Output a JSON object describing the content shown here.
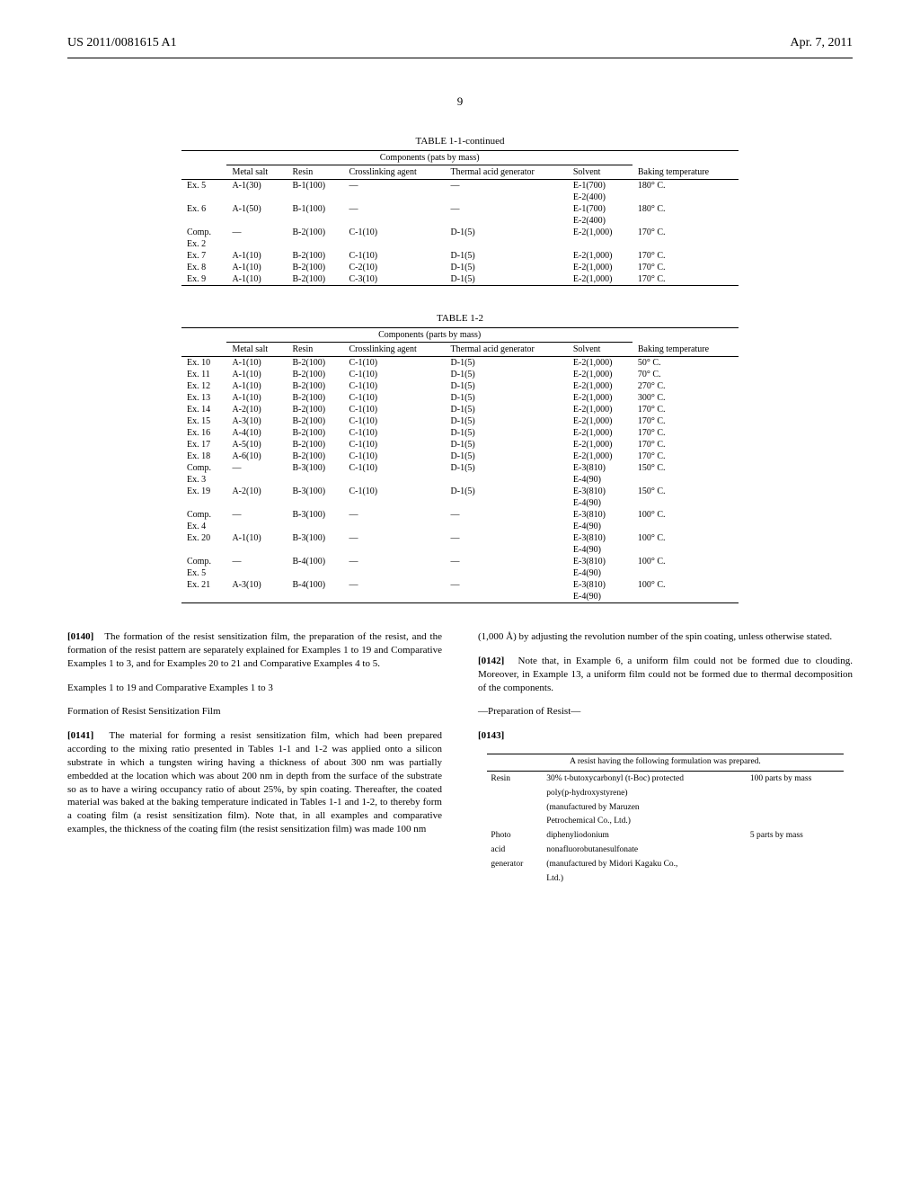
{
  "header": {
    "pub_no": "US 2011/0081615 A1",
    "date": "Apr. 7, 2011"
  },
  "page_number": "9",
  "table11": {
    "title": "TABLE 1-1-continued",
    "span_label": "Components (pats by mass)",
    "cols": [
      "",
      "Metal salt",
      "Resin",
      "Crosslinking agent",
      "Thermal acid generator",
      "Solvent",
      "Baking temperature"
    ],
    "rows": [
      [
        "Ex. 5",
        "A-1(30)",
        "B-1(100)",
        "—",
        "—",
        "E-1(700)",
        "180° C."
      ],
      [
        "",
        "",
        "",
        "",
        "",
        "E-2(400)",
        ""
      ],
      [
        "Ex. 6",
        "A-1(50)",
        "B-1(100)",
        "—",
        "—",
        "E-1(700)",
        "180° C."
      ],
      [
        "",
        "",
        "",
        "",
        "",
        "E-2(400)",
        ""
      ],
      [
        "Comp.",
        "—",
        "B-2(100)",
        "C-1(10)",
        "D-1(5)",
        "E-2(1,000)",
        "170° C."
      ],
      [
        "Ex. 2",
        "",
        "",
        "",
        "",
        "",
        ""
      ],
      [
        "Ex. 7",
        "A-1(10)",
        "B-2(100)",
        "C-1(10)",
        "D-1(5)",
        "E-2(1,000)",
        "170° C."
      ],
      [
        "Ex. 8",
        "A-1(10)",
        "B-2(100)",
        "C-2(10)",
        "D-1(5)",
        "E-2(1,000)",
        "170° C."
      ],
      [
        "Ex. 9",
        "A-1(10)",
        "B-2(100)",
        "C-3(10)",
        "D-1(5)",
        "E-2(1,000)",
        "170° C."
      ]
    ]
  },
  "table12": {
    "title": "TABLE 1-2",
    "span_label": "Components (parts by mass)",
    "cols": [
      "",
      "Metal salt",
      "Resin",
      "Crosslinking agent",
      "Thermal acid generator",
      "Solvent",
      "Baking temperature"
    ],
    "rows": [
      [
        "Ex. 10",
        "A-1(10)",
        "B-2(100)",
        "C-1(10)",
        "D-1(5)",
        "E-2(1,000)",
        "50° C."
      ],
      [
        "Ex. 11",
        "A-1(10)",
        "B-2(100)",
        "C-1(10)",
        "D-1(5)",
        "E-2(1,000)",
        "70° C."
      ],
      [
        "Ex. 12",
        "A-1(10)",
        "B-2(100)",
        "C-1(10)",
        "D-1(5)",
        "E-2(1,000)",
        "270° C."
      ],
      [
        "Ex. 13",
        "A-1(10)",
        "B-2(100)",
        "C-1(10)",
        "D-1(5)",
        "E-2(1,000)",
        "300° C."
      ],
      [
        "Ex. 14",
        "A-2(10)",
        "B-2(100)",
        "C-1(10)",
        "D-1(5)",
        "E-2(1,000)",
        "170° C."
      ],
      [
        "Ex. 15",
        "A-3(10)",
        "B-2(100)",
        "C-1(10)",
        "D-1(5)",
        "E-2(1,000)",
        "170° C."
      ],
      [
        "Ex. 16",
        "A-4(10)",
        "B-2(100)",
        "C-1(10)",
        "D-1(5)",
        "E-2(1,000)",
        "170° C."
      ],
      [
        "Ex. 17",
        "A-5(10)",
        "B-2(100)",
        "C-1(10)",
        "D-1(5)",
        "E-2(1,000)",
        "170° C."
      ],
      [
        "Ex. 18",
        "A-6(10)",
        "B-2(100)",
        "C-1(10)",
        "D-1(5)",
        "E-2(1,000)",
        "170° C."
      ],
      [
        "Comp.",
        "—",
        "B-3(100)",
        "C-1(10)",
        "D-1(5)",
        "E-3(810)",
        "150° C."
      ],
      [
        "Ex. 3",
        "",
        "",
        "",
        "",
        "E-4(90)",
        ""
      ],
      [
        "Ex. 19",
        "A-2(10)",
        "B-3(100)",
        "C-1(10)",
        "D-1(5)",
        "E-3(810)",
        "150° C."
      ],
      [
        "",
        "",
        "",
        "",
        "",
        "E-4(90)",
        ""
      ],
      [
        "Comp.",
        "—",
        "B-3(100)",
        "—",
        "—",
        "E-3(810)",
        "100° C."
      ],
      [
        "Ex. 4",
        "",
        "",
        "",
        "",
        "E-4(90)",
        ""
      ],
      [
        "Ex. 20",
        "A-1(10)",
        "B-3(100)",
        "—",
        "—",
        "E-3(810)",
        "100° C."
      ],
      [
        "",
        "",
        "",
        "",
        "",
        "E-4(90)",
        ""
      ],
      [
        "Comp.",
        "—",
        "B-4(100)",
        "—",
        "—",
        "E-3(810)",
        "100° C."
      ],
      [
        "Ex. 5",
        "",
        "",
        "",
        "",
        "E-4(90)",
        ""
      ],
      [
        "Ex. 21",
        "A-3(10)",
        "B-4(100)",
        "—",
        "—",
        "E-3(810)",
        "100° C."
      ],
      [
        "",
        "",
        "",
        "",
        "",
        "E-4(90)",
        ""
      ]
    ]
  },
  "left": {
    "p0140_num": "[0140]",
    "p0140": "The formation of the resist sensitization film, the preparation of the resist, and the formation of the resist pattern are separately explained for Examples 1 to 19 and Comparative Examples 1 to 3, and for Examples 20 to 21 and Comparative Examples 4 to 5.",
    "sec_title": "Examples 1 to 19 and Comparative Examples 1 to 3",
    "sub_title": "Formation of Resist Sensitization Film",
    "p0141_num": "[0141]",
    "p0141": "The material for forming a resist sensitization film, which had been prepared according to the mixing ratio presented in Tables 1-1 and 1-2 was applied onto a silicon substrate in which a tungsten wiring having a thickness of about 300 nm was partially embedded at the location which was about 200 nm in depth from the surface of the substrate so as to have a wiring occupancy ratio of about 25%, by spin coating. Thereafter, the coated material was baked at the baking temperature indicated in Tables 1-1 and 1-2, to thereby form a coating film (a resist sensitization film). Note that, in all examples and comparative examples, the thickness of the coating film (the resist sensitization film) was made 100 nm"
  },
  "right": {
    "p_cont": "(1,000 Å) by adjusting the revolution number of the spin coating, unless otherwise stated.",
    "p0142_num": "[0142]",
    "p0142": "Note that, in Example 6, a uniform film could not be formed due to clouding. Moreover, in Example 13, a uniform film could not be formed due to thermal decomposition of the components.",
    "prep_title": "—Preparation of Resist—",
    "p0143_num": "[0143]",
    "table_caption": "A resist having the following formulation was prepared.",
    "resin_label": "Resin",
    "resin_text1": "30% t-butoxycarbonyl (t-Boc) protected",
    "resin_text2": "poly(p-hydroxystyrene)",
    "resin_text3": "(manufactured by Maruzen",
    "resin_text4": "Petrochemical Co., Ltd.)",
    "resin_amt": "100 parts by mass",
    "photo_label1": "Photo",
    "photo_label2": "acid",
    "photo_label3": "generator",
    "photo_text1": "diphenyliodonium",
    "photo_text2": "nonafluorobutanesulfonate",
    "photo_text3": "(manufactured by Midori Kagaku Co.,",
    "photo_text4": "Ltd.)",
    "photo_amt": "5 parts by mass"
  }
}
